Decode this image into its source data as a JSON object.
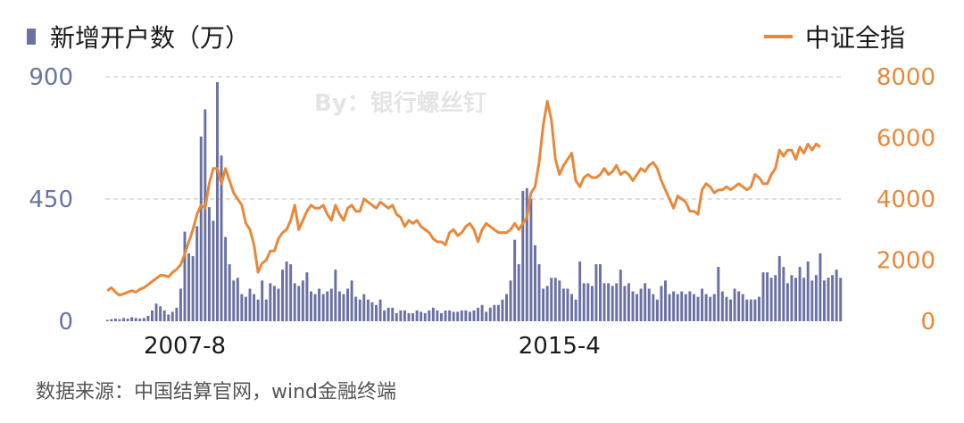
{
  "legend": {
    "bars_label": "新增开户数（万）",
    "line_label": "中证全指"
  },
  "watermark": "By：银行螺丝钉",
  "source": "数据来源：中国结算官网，wind金融终端",
  "colors": {
    "bars": "#6b72a3",
    "line": "#e8883a",
    "grid": "#cccccc"
  },
  "chart_data": {
    "type": "bar+line",
    "x_tick_labels": [
      "2007-8",
      "2015-4"
    ],
    "x_tick_index": [
      19,
      111
    ],
    "left_axis": {
      "ticks": [
        0,
        450,
        900
      ],
      "ylim": [
        0,
        900
      ]
    },
    "right_axis": {
      "ticks": [
        0,
        2000,
        4000,
        6000,
        8000
      ],
      "ylim": [
        0,
        8000
      ]
    },
    "grid": "dashed at 450 and 900",
    "series": [
      {
        "name": "新增开户数（万）",
        "type": "bar",
        "axis": "left",
        "values": [
          5,
          8,
          10,
          8,
          12,
          10,
          15,
          12,
          10,
          12,
          20,
          40,
          65,
          55,
          40,
          25,
          35,
          50,
          120,
          330,
          250,
          240,
          350,
          680,
          780,
          420,
          370,
          880,
          610,
          310,
          210,
          150,
          160,
          100,
          90,
          120,
          100,
          80,
          150,
          80,
          140,
          130,
          120,
          190,
          220,
          210,
          140,
          130,
          150,
          180,
          110,
          100,
          120,
          100,
          110,
          120,
          190,
          110,
          100,
          120,
          150,
          90,
          80,
          100,
          80,
          70,
          60,
          80,
          40,
          50,
          50,
          30,
          40,
          40,
          30,
          30,
          40,
          35,
          30,
          40,
          50,
          40,
          30,
          40,
          40,
          35,
          35,
          40,
          40,
          35,
          40,
          50,
          60,
          35,
          50,
          60,
          60,
          80,
          100,
          150,
          300,
          210,
          480,
          490,
          450,
          280,
          210,
          120,
          130,
          160,
          160,
          150,
          120,
          120,
          100,
          80,
          220,
          140,
          140,
          130,
          210,
          210,
          140,
          140,
          130,
          140,
          190,
          130,
          140,
          110,
          100,
          120,
          140,
          120,
          100,
          80,
          130,
          150,
          100,
          110,
          100,
          110,
          100,
          110,
          100,
          90,
          120,
          100,
          90,
          100,
          200,
          110,
          90,
          80,
          120,
          110,
          100,
          80,
          80,
          80,
          90,
          180,
          180,
          160,
          170,
          240,
          200,
          140,
          170,
          160,
          200,
          160,
          220,
          150,
          170,
          250,
          150,
          160,
          170,
          190,
          160
        ],
        "value_note": "estimated from axis; labeled ticks 0, 450, 900"
      },
      {
        "name": "中证全指",
        "type": "line",
        "axis": "right",
        "values": [
          1000,
          1100,
          950,
          850,
          900,
          950,
          1000,
          950,
          1050,
          1100,
          1200,
          1300,
          1400,
          1500,
          1500,
          1450,
          1600,
          1700,
          1850,
          2200,
          2600,
          3000,
          3500,
          3800,
          3700,
          4500,
          5000,
          5000,
          4500,
          5000,
          4600,
          4200,
          4000,
          3800,
          3200,
          3000,
          2500,
          1600,
          1900,
          2000,
          2300,
          2300,
          2700,
          2900,
          3000,
          3300,
          3800,
          3000,
          3300,
          3600,
          3800,
          3700,
          3700,
          3800,
          3500,
          3300,
          3800,
          3500,
          3300,
          3700,
          3800,
          3600,
          3600,
          4000,
          3900,
          3800,
          3700,
          3900,
          3800,
          3700,
          3800,
          3500,
          3400,
          3100,
          3300,
          3200,
          3300,
          3100,
          3000,
          2900,
          2700,
          2600,
          2600,
          2500,
          2900,
          3000,
          2800,
          2900,
          3100,
          3200,
          3000,
          2600,
          3000,
          3200,
          3100,
          3000,
          2900,
          2900,
          2900,
          3000,
          3200,
          3000,
          3200,
          3400,
          4200,
          4400,
          5200,
          6400,
          7200,
          6600,
          5300,
          4800,
          5100,
          5300,
          5500,
          4600,
          4400,
          4700,
          4800,
          4700,
          4700,
          4800,
          5000,
          4800,
          4900,
          5100,
          4800,
          4900,
          4800,
          4600,
          4800,
          5000,
          4900,
          5100,
          5200,
          5000,
          4600,
          4300,
          4000,
          3700,
          4100,
          4000,
          3900,
          3600,
          3600,
          3500,
          4300,
          4500,
          4400,
          4200,
          4300,
          4300,
          4400,
          4300,
          4400,
          4500,
          4400,
          4300,
          4400,
          4800,
          4700,
          4500,
          4500,
          4800,
          5000,
          5600,
          5400,
          5600,
          5600,
          5300,
          5700,
          5500,
          5800,
          5600,
          5800,
          5700
        ]
      }
    ]
  }
}
